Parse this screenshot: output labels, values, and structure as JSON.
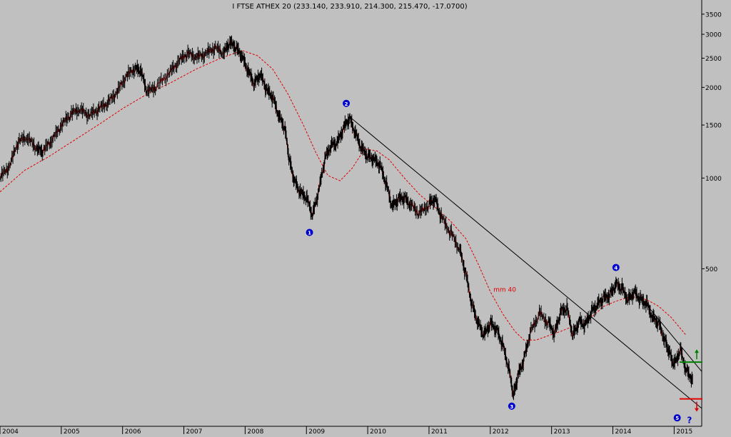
{
  "chart_data": {
    "type": "candlestick-line",
    "title": "I FTSE ATHEX 20 (233.140, 233.910, 214.300, 215.470, -17.0700)",
    "x_ticks": [
      "2004",
      "2005",
      "2006",
      "2007",
      "2008",
      "2009",
      "2010",
      "2011",
      "2012",
      "2013",
      "2014",
      "2015"
    ],
    "y_ticks": [
      3500,
      3000,
      2500,
      2000,
      1500,
      1000,
      500
    ],
    "y_scale": "log",
    "ylim": [
      150,
      3900
    ],
    "xlim": [
      2004.0,
      2015.45
    ],
    "series": [
      {
        "role": "price",
        "color": "#000000",
        "points": [
          [
            2004.0,
            1000
          ],
          [
            2004.15,
            1080
          ],
          [
            2004.3,
            1320
          ],
          [
            2004.45,
            1350
          ],
          [
            2004.6,
            1240
          ],
          [
            2004.7,
            1220
          ],
          [
            2004.85,
            1330
          ],
          [
            2005.0,
            1480
          ],
          [
            2005.15,
            1620
          ],
          [
            2005.3,
            1680
          ],
          [
            2005.45,
            1600
          ],
          [
            2005.6,
            1680
          ],
          [
            2005.75,
            1760
          ],
          [
            2005.9,
            1900
          ],
          [
            2006.05,
            2150
          ],
          [
            2006.2,
            2300
          ],
          [
            2006.3,
            2250
          ],
          [
            2006.4,
            1920
          ],
          [
            2006.55,
            2000
          ],
          [
            2006.75,
            2200
          ],
          [
            2006.9,
            2400
          ],
          [
            2007.05,
            2580
          ],
          [
            2007.2,
            2500
          ],
          [
            2007.35,
            2560
          ],
          [
            2007.5,
            2700
          ],
          [
            2007.65,
            2580
          ],
          [
            2007.75,
            2800
          ],
          [
            2007.85,
            2700
          ],
          [
            2007.95,
            2520
          ],
          [
            2008.05,
            2250
          ],
          [
            2008.15,
            2050
          ],
          [
            2008.25,
            2200
          ],
          [
            2008.35,
            1950
          ],
          [
            2008.45,
            1850
          ],
          [
            2008.55,
            1600
          ],
          [
            2008.65,
            1450
          ],
          [
            2008.72,
            1150
          ],
          [
            2008.8,
            980
          ],
          [
            2008.9,
            890
          ],
          [
            2009.0,
            860
          ],
          [
            2009.1,
            750
          ],
          [
            2009.2,
            900
          ],
          [
            2009.3,
            1150
          ],
          [
            2009.4,
            1280
          ],
          [
            2009.5,
            1300
          ],
          [
            2009.6,
            1450
          ],
          [
            2009.7,
            1580
          ],
          [
            2009.8,
            1400
          ],
          [
            2009.9,
            1250
          ],
          [
            2010.0,
            1180
          ],
          [
            2010.1,
            1150
          ],
          [
            2010.2,
            1100
          ],
          [
            2010.3,
            960
          ],
          [
            2010.4,
            800
          ],
          [
            2010.5,
            850
          ],
          [
            2010.6,
            860
          ],
          [
            2010.7,
            810
          ],
          [
            2010.85,
            760
          ],
          [
            2011.0,
            820
          ],
          [
            2011.1,
            850
          ],
          [
            2011.2,
            740
          ],
          [
            2011.35,
            660
          ],
          [
            2011.5,
            580
          ],
          [
            2011.6,
            480
          ],
          [
            2011.7,
            380
          ],
          [
            2011.8,
            330
          ],
          [
            2011.9,
            300
          ],
          [
            2012.0,
            330
          ],
          [
            2012.1,
            315
          ],
          [
            2012.2,
            280
          ],
          [
            2012.3,
            235
          ],
          [
            2012.38,
            190
          ],
          [
            2012.45,
            220
          ],
          [
            2012.55,
            250
          ],
          [
            2012.65,
            305
          ],
          [
            2012.8,
            355
          ],
          [
            2012.95,
            330
          ],
          [
            2013.05,
            305
          ],
          [
            2013.15,
            360
          ],
          [
            2013.25,
            370
          ],
          [
            2013.35,
            300
          ],
          [
            2013.45,
            335
          ],
          [
            2013.55,
            325
          ],
          [
            2013.65,
            360
          ],
          [
            2013.75,
            380
          ],
          [
            2013.85,
            400
          ],
          [
            2013.95,
            410
          ],
          [
            2014.05,
            445
          ],
          [
            2014.15,
            430
          ],
          [
            2014.25,
            395
          ],
          [
            2014.35,
            420
          ],
          [
            2014.45,
            395
          ],
          [
            2014.55,
            385
          ],
          [
            2014.65,
            345
          ],
          [
            2014.75,
            330
          ],
          [
            2014.85,
            290
          ],
          [
            2014.92,
            265
          ],
          [
            2015.0,
            240
          ],
          [
            2015.1,
            270
          ],
          [
            2015.2,
            230
          ],
          [
            2015.3,
            215
          ]
        ]
      },
      {
        "role": "moving-average",
        "name": "mm 40",
        "color": "#e00000",
        "points": [
          [
            2004.0,
            900
          ],
          [
            2004.4,
            1060
          ],
          [
            2004.8,
            1180
          ],
          [
            2005.2,
            1330
          ],
          [
            2005.6,
            1500
          ],
          [
            2006.0,
            1700
          ],
          [
            2006.4,
            1900
          ],
          [
            2006.8,
            2080
          ],
          [
            2007.2,
            2300
          ],
          [
            2007.6,
            2500
          ],
          [
            2007.95,
            2650
          ],
          [
            2008.2,
            2550
          ],
          [
            2008.45,
            2300
          ],
          [
            2008.7,
            1900
          ],
          [
            2008.95,
            1500
          ],
          [
            2009.15,
            1220
          ],
          [
            2009.35,
            1020
          ],
          [
            2009.55,
            980
          ],
          [
            2009.75,
            1080
          ],
          [
            2009.95,
            1250
          ],
          [
            2010.15,
            1230
          ],
          [
            2010.35,
            1150
          ],
          [
            2010.6,
            1000
          ],
          [
            2010.85,
            880
          ],
          [
            2011.1,
            800
          ],
          [
            2011.35,
            720
          ],
          [
            2011.6,
            630
          ],
          [
            2011.8,
            520
          ],
          [
            2012.0,
            420
          ],
          [
            2012.2,
            355
          ],
          [
            2012.4,
            310
          ],
          [
            2012.55,
            290
          ],
          [
            2012.75,
            290
          ],
          [
            2012.95,
            300
          ],
          [
            2013.15,
            310
          ],
          [
            2013.4,
            325
          ],
          [
            2013.65,
            345
          ],
          [
            2013.85,
            375
          ],
          [
            2014.05,
            390
          ],
          [
            2014.3,
            405
          ],
          [
            2014.55,
            395
          ],
          [
            2014.75,
            375
          ],
          [
            2014.95,
            345
          ],
          [
            2015.2,
            300
          ]
        ]
      }
    ],
    "trend_lines": [
      {
        "color": "#000000",
        "from": [
          2009.7,
          1600
        ],
        "to": [
          2015.45,
          172
        ]
      },
      {
        "color": "#000000",
        "from": [
          2014.55,
          380
        ],
        "to": [
          2015.45,
          228
        ]
      }
    ],
    "horizontal_marks": [
      {
        "color": "#008000",
        "value": 245,
        "arrow": "up"
      },
      {
        "color": "#e00000",
        "value": 185,
        "arrow": "down"
      }
    ],
    "wave_labels": [
      {
        "text": "1",
        "x": 2009.05,
        "y": 660
      },
      {
        "text": "2",
        "x": 2009.65,
        "y": 1770
      },
      {
        "text": "3",
        "x": 2012.35,
        "y": 175
      },
      {
        "text": "4",
        "x": 2014.05,
        "y": 505
      },
      {
        "text": "5",
        "x": 2015.05,
        "y": 160
      },
      {
        "text": "?",
        "x": 2015.25,
        "y": 157
      }
    ],
    "annotation": "mm 40",
    "annotation_pos": [
      2012.05,
      420
    ]
  }
}
